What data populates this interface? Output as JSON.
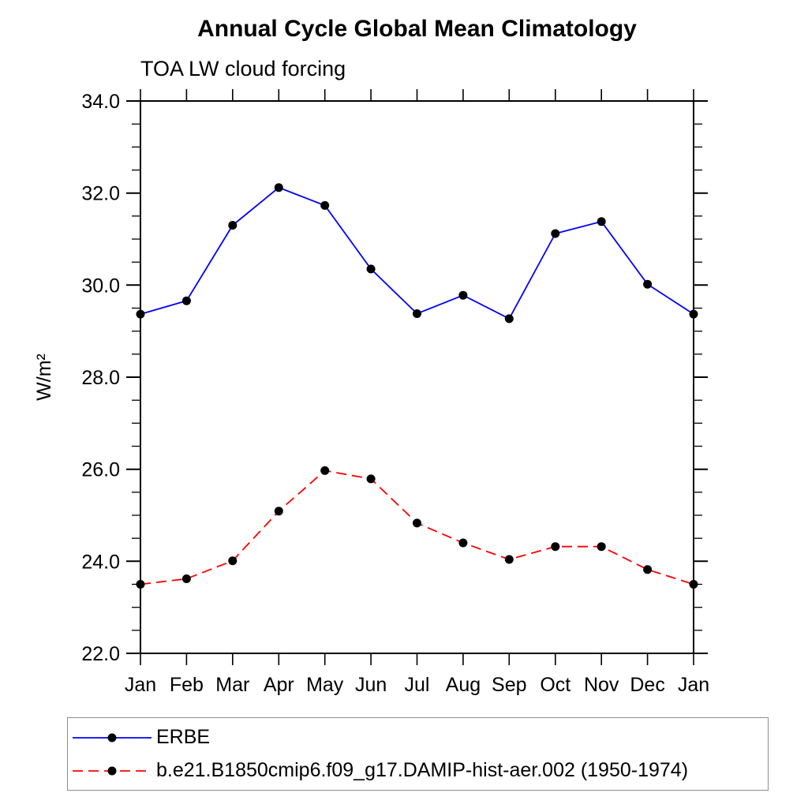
{
  "chart_data": {
    "type": "line",
    "title": "Annual Cycle Global Mean Climatology",
    "subtitle": "TOA LW cloud forcing",
    "ylabel": "W/m²",
    "x_categories": [
      "Jan",
      "Feb",
      "Mar",
      "Apr",
      "May",
      "Jun",
      "Jul",
      "Aug",
      "Sep",
      "Oct",
      "Nov",
      "Dec",
      "Jan"
    ],
    "ylim": [
      22.0,
      34.0
    ],
    "y_major_step": 2.0,
    "y_minor_step": 0.5,
    "y_tick_labels": [
      "22.0",
      "24.0",
      "26.0",
      "28.0",
      "30.0",
      "32.0",
      "34.0"
    ],
    "grid": false,
    "legend_position": "bottom-left",
    "axis_color": "#000000",
    "marker_color": "#000000",
    "series": [
      {
        "name": "ERBE",
        "color": "#0000ff",
        "line_style": "solid",
        "marker": "filled-circle",
        "values": [
          29.37,
          29.66,
          31.3,
          32.12,
          31.73,
          30.35,
          29.38,
          29.78,
          29.27,
          31.12,
          31.38,
          30.02,
          29.37
        ]
      },
      {
        "name": "b.e21.B1850cmip6.f09_g17.DAMIP-hist-aer.002 (1950-1974)",
        "color": "#ff0000",
        "line_style": "dashed",
        "marker": "filled-circle",
        "values": [
          23.5,
          23.62,
          24.01,
          25.09,
          25.97,
          25.79,
          24.83,
          24.4,
          24.04,
          24.32,
          24.32,
          23.82,
          23.5
        ]
      }
    ]
  }
}
